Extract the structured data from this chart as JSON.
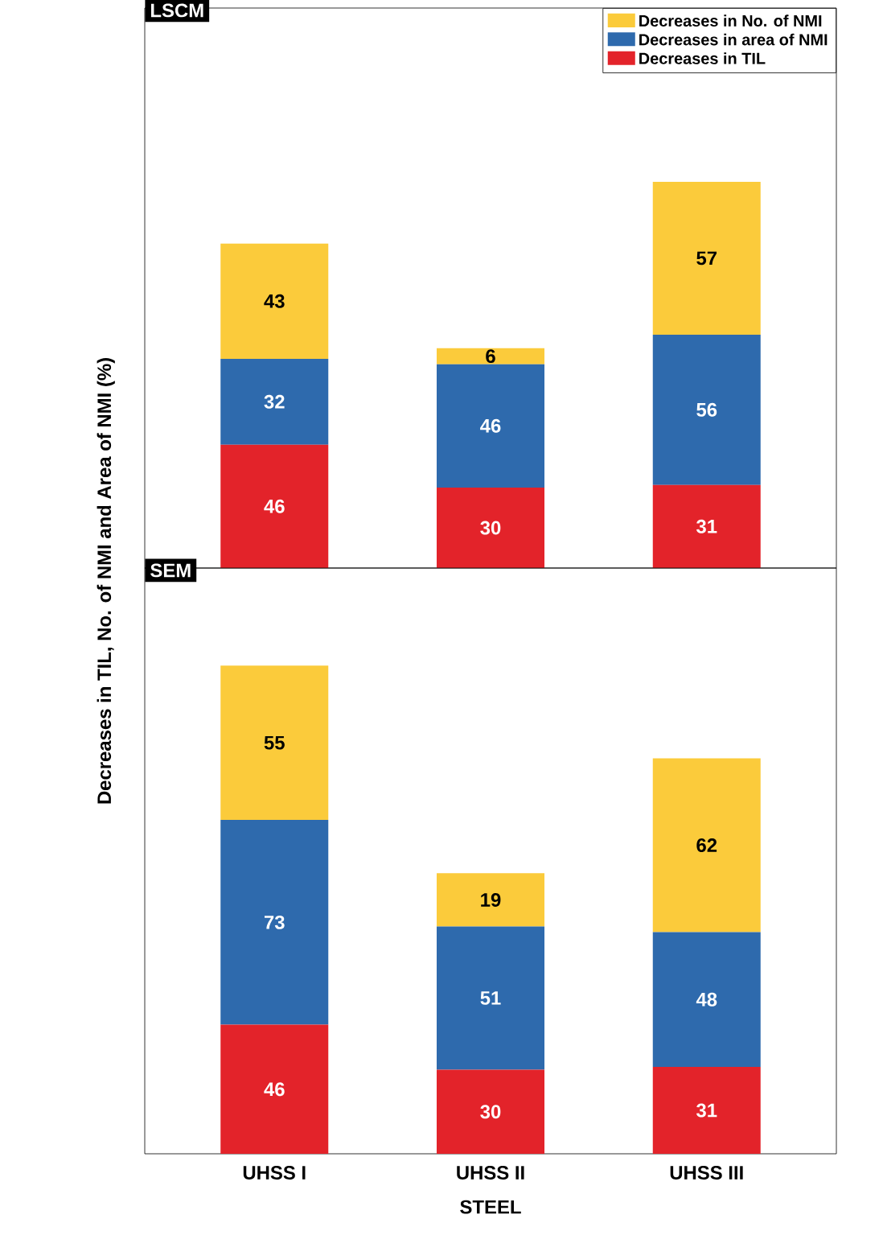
{
  "chart_data": [
    {
      "type": "bar",
      "title": "LSCM",
      "stacked": true,
      "data_labels": true,
      "categories": [
        null,
        null,
        null
      ],
      "tick_labels": false,
      "legend": "top right",
      "ylabel": "Decreases in TIL, No. of NMI and Area of NMI (%)",
      "series": [
        {
          "name": "Decreases in TIL",
          "color": "#e3232a",
          "values": [
            46,
            30,
            31
          ]
        },
        {
          "name": "Decreases in area of NMI",
          "color": "#2e6aad",
          "values": [
            32,
            46,
            56
          ]
        },
        {
          "name": "Decreases in No. of NMI",
          "color": "#fbcb3b",
          "values": [
            43,
            6,
            57
          ]
        }
      ]
    },
    {
      "type": "bar",
      "title": "SEM",
      "stacked": true,
      "data_labels": true,
      "categories": [
        "UHSS I",
        "UHSS II",
        "UHSS III"
      ],
      "tick_labels": "x",
      "xlabel": "STEEL",
      "series": [
        {
          "color": "#e3232a",
          "values": [
            46,
            30,
            31
          ]
        },
        {
          "color": "#2e6aad",
          "values": [
            73,
            51,
            48
          ]
        },
        {
          "color": "#fbcb3b",
          "values": [
            55,
            19,
            62
          ]
        }
      ]
    }
  ]
}
